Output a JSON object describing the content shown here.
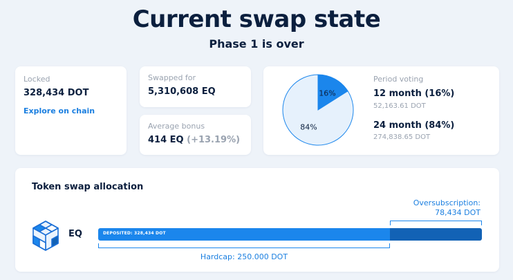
{
  "header": {
    "title": "Current swap state",
    "subtitle": "Phase 1 is over"
  },
  "locked": {
    "label": "Locked",
    "value": "328,434 DOT",
    "link": "Explore on chain"
  },
  "swapped": {
    "label": "Swapped for",
    "value": "5,310,608 EQ"
  },
  "bonus": {
    "label": "Average bonus",
    "value": "414 EQ",
    "pct": "(+13.19%)"
  },
  "voting": {
    "label": "Period voting",
    "options": [
      {
        "title": "12 month (16%)",
        "amount": "52,163.61 DOT",
        "share": 16,
        "slice_label": "16%",
        "color": "#1b86ec"
      },
      {
        "title": "24 month (84%)",
        "amount": "274,838.65 DOT",
        "share": 84,
        "slice_label": "84%",
        "color": "#e6f1fc"
      }
    ]
  },
  "allocation": {
    "title": "Token swap allocation",
    "token": "EQ",
    "deposited_label": "DEPOSITED: 328,434 DOT",
    "oversubscription_label": "Oversubscription:",
    "oversubscription_value": "78,434 DOT",
    "hardcap_label": "Hardcap: 250.000 DOT",
    "hardcap_fraction": 0.7612
  },
  "colors": {
    "accent": "#1b86ec",
    "accent_dark": "#1262b5",
    "text": "#0b1f3e"
  }
}
